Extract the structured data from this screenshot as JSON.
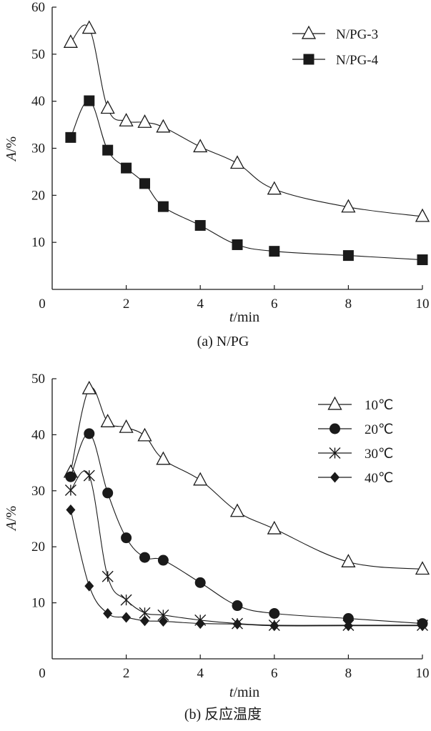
{
  "chart_data": [
    {
      "type": "line",
      "caption": "(a) N/PG",
      "xlabel_var": "t",
      "xlabel_unit": "/min",
      "ylabel_var": "A",
      "ylabel_unit": "/%",
      "xlim": [
        0,
        10
      ],
      "ylim": [
        0,
        60
      ],
      "xticks": [
        0,
        2,
        4,
        6,
        8,
        10
      ],
      "yticks": [
        10,
        20,
        30,
        40,
        50,
        60
      ],
      "legend_position": "top-right",
      "series": [
        {
          "name": "N/PG-3",
          "marker": "triangle-open",
          "x": [
            0.5,
            1,
            1.5,
            2,
            2.5,
            3,
            4,
            5,
            6,
            8,
            10
          ],
          "y": [
            52.5,
            55.5,
            38.5,
            35.8,
            35.5,
            34.5,
            30.3,
            26.8,
            21.3,
            17.5,
            15.5
          ]
        },
        {
          "name": "N/PG-4",
          "marker": "square-filled",
          "x": [
            0.5,
            1,
            1.5,
            2,
            2.5,
            3,
            4,
            5,
            6,
            8,
            10
          ],
          "y": [
            32.3,
            40.1,
            29.6,
            25.8,
            22.5,
            17.6,
            13.6,
            9.5,
            8.1,
            7.2,
            6.3
          ]
        }
      ]
    },
    {
      "type": "line",
      "caption": "(b) 反应温度",
      "xlabel_var": "t",
      "xlabel_unit": "/min",
      "ylabel_var": "A",
      "ylabel_unit": "/%",
      "xlim": [
        0,
        10
      ],
      "ylim": [
        0,
        50
      ],
      "xticks": [
        0,
        2,
        4,
        6,
        8,
        10
      ],
      "yticks": [
        10,
        20,
        30,
        40,
        50
      ],
      "legend_position": "top-right",
      "series": [
        {
          "name": "10℃",
          "marker": "triangle-open",
          "x": [
            0.5,
            1,
            1.5,
            2,
            2.5,
            3,
            4,
            5,
            6,
            8,
            10
          ],
          "y": [
            33.3,
            48.2,
            42.3,
            41.3,
            39.8,
            35.6,
            31.9,
            26.3,
            23.2,
            17.3,
            16.0
          ]
        },
        {
          "name": "20℃",
          "marker": "circle-filled",
          "x": [
            0.5,
            1,
            1.5,
            2,
            2.5,
            3,
            4,
            5,
            6,
            8,
            10
          ],
          "y": [
            32.5,
            40.2,
            29.6,
            21.6,
            18.1,
            17.6,
            13.6,
            9.5,
            8.1,
            7.2,
            6.3
          ]
        },
        {
          "name": "30℃",
          "marker": "asterisk",
          "x": [
            0.5,
            1,
            1.5,
            2,
            2.5,
            3,
            4,
            5,
            6,
            8,
            10
          ],
          "y": [
            30.1,
            32.7,
            14.7,
            10.5,
            8.2,
            7.8,
            6.9,
            6.3,
            6.0,
            6.0,
            6.0
          ]
        },
        {
          "name": "40℃",
          "marker": "diamond-filled",
          "x": [
            0.5,
            1,
            1.5,
            2,
            2.5,
            3,
            4,
            5,
            6,
            8,
            10
          ],
          "y": [
            26.6,
            13.0,
            8.1,
            7.4,
            6.8,
            6.7,
            6.3,
            6.2,
            5.9,
            5.9,
            5.9
          ]
        }
      ]
    }
  ]
}
